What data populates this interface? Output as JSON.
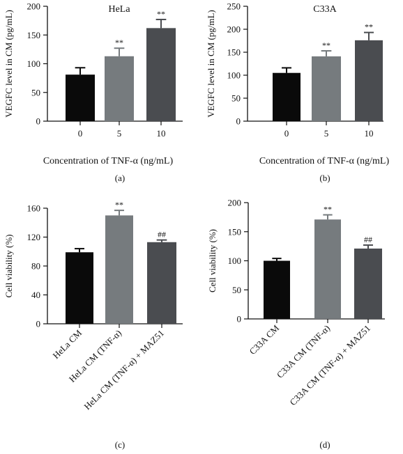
{
  "chart_data": [
    {
      "id": "a",
      "type": "bar",
      "title": "HeLa",
      "ylabel": "VEGFC level in CM (pg/mL)",
      "xlabel": "Concentration of TNF-α (ng/mL)",
      "panel_label": "(a)",
      "categories": [
        "0",
        "5",
        "10"
      ],
      "values": [
        81,
        113,
        162
      ],
      "errors": [
        12,
        14,
        15
      ],
      "annotations": [
        "",
        "**",
        "**"
      ],
      "ylim": [
        0,
        200
      ],
      "yticks": [
        0,
        50,
        100,
        150,
        200
      ],
      "bar_colors": [
        "#0a0a0a",
        "#767b7e",
        "#4a4c50"
      ],
      "grid": false
    },
    {
      "id": "b",
      "type": "bar",
      "title": "C33A",
      "ylabel": "VEGFC level in CM (pg/mL)",
      "xlabel": "Concentration of TNF-α (ng/mL)",
      "panel_label": "(b)",
      "categories": [
        "0",
        "5",
        "10"
      ],
      "values": [
        105,
        141,
        176
      ],
      "errors": [
        11,
        12,
        17
      ],
      "annotations": [
        "",
        "**",
        "**"
      ],
      "ylim": [
        0,
        250
      ],
      "yticks": [
        0,
        50,
        100,
        150,
        200,
        250
      ],
      "bar_colors": [
        "#0a0a0a",
        "#767b7e",
        "#4a4c50"
      ],
      "grid": false
    },
    {
      "id": "c",
      "type": "bar",
      "title": "",
      "ylabel": "Cell viability (%)",
      "xlabel": "",
      "panel_label": "(c)",
      "categories": [
        "HeLa CM",
        "HeLa CM (TNF-α)",
        "HeLa CM (TNF-α) + MAZ51"
      ],
      "values": [
        99,
        150,
        113
      ],
      "errors": [
        5,
        7,
        3
      ],
      "annotations": [
        "",
        "**",
        "##"
      ],
      "ylim": [
        0,
        160
      ],
      "yticks": [
        0,
        40,
        80,
        120,
        160
      ],
      "bar_colors": [
        "#0a0a0a",
        "#767b7e",
        "#4a4c50"
      ],
      "grid": false
    },
    {
      "id": "d",
      "type": "bar",
      "title": "",
      "ylabel": "Cell viability (%)",
      "xlabel": "",
      "panel_label": "(d)",
      "categories": [
        "C33A CM",
        "C33A CM (TNF-α)",
        "C33A CM (TNF-α) + MAZ51"
      ],
      "values": [
        100,
        171,
        121
      ],
      "errors": [
        4,
        8,
        6
      ],
      "annotations": [
        "",
        "**",
        "##"
      ],
      "ylim": [
        0,
        200
      ],
      "yticks": [
        0,
        50,
        100,
        150,
        200
      ],
      "bar_colors": [
        "#0a0a0a",
        "#767b7e",
        "#4a4c50"
      ],
      "grid": false
    }
  ]
}
